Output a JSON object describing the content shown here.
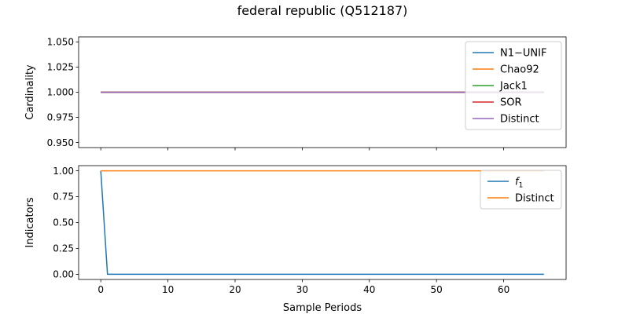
{
  "figure": {
    "title": "federal republic (Q512187)"
  },
  "chart_data": [
    {
      "type": "line",
      "ylabel": "Cardinality",
      "xlabel": "",
      "xlim": [
        -3.3,
        69.3
      ],
      "ylim": [
        0.945,
        1.055
      ],
      "xticks": [
        0,
        10,
        20,
        30,
        40,
        50,
        60
      ],
      "yticks": [
        0.95,
        0.975,
        1.0,
        1.025,
        1.05
      ],
      "ytick_labels": [
        "0.950",
        "0.975",
        "1.000",
        "1.025",
        "1.050"
      ],
      "show_xtick_labels": false,
      "legend": "top-right",
      "series": [
        {
          "name": "N1−UNIF",
          "color": "#1f77b4",
          "x": [
            0,
            66
          ],
          "y": [
            1.0,
            1.0
          ]
        },
        {
          "name": "Chao92",
          "color": "#ff7f0e",
          "x": [
            0,
            66
          ],
          "y": [
            1.0,
            1.0
          ]
        },
        {
          "name": "Jack1",
          "color": "#2ca02c",
          "x": [
            0,
            66
          ],
          "y": [
            1.0,
            1.0
          ]
        },
        {
          "name": "SOR",
          "color": "#d62728",
          "x": [
            0,
            66
          ],
          "y": [
            1.0,
            1.0
          ]
        },
        {
          "name": "Distinct",
          "color": "#9467bd",
          "x": [
            0,
            66
          ],
          "y": [
            1.0,
            1.0
          ]
        }
      ]
    },
    {
      "type": "line",
      "ylabel": "Indicators",
      "xlabel": "Sample Periods",
      "xlim": [
        -3.3,
        69.3
      ],
      "ylim": [
        -0.05,
        1.05
      ],
      "xticks": [
        0,
        10,
        20,
        30,
        40,
        50,
        60
      ],
      "yticks": [
        0.0,
        0.25,
        0.5,
        0.75,
        1.0
      ],
      "ytick_labels": [
        "0.00",
        "0.25",
        "0.50",
        "0.75",
        "1.00"
      ],
      "show_xtick_labels": true,
      "legend": "top-right",
      "series": [
        {
          "name": "f",
          "name_subscript": "1",
          "color": "#1f77b4",
          "x": [
            0,
            1,
            66
          ],
          "y": [
            1.0,
            0.0,
            0.0
          ]
        },
        {
          "name": "Distinct",
          "color": "#ff7f0e",
          "x": [
            0,
            66
          ],
          "y": [
            1.0,
            1.0
          ]
        }
      ]
    }
  ]
}
